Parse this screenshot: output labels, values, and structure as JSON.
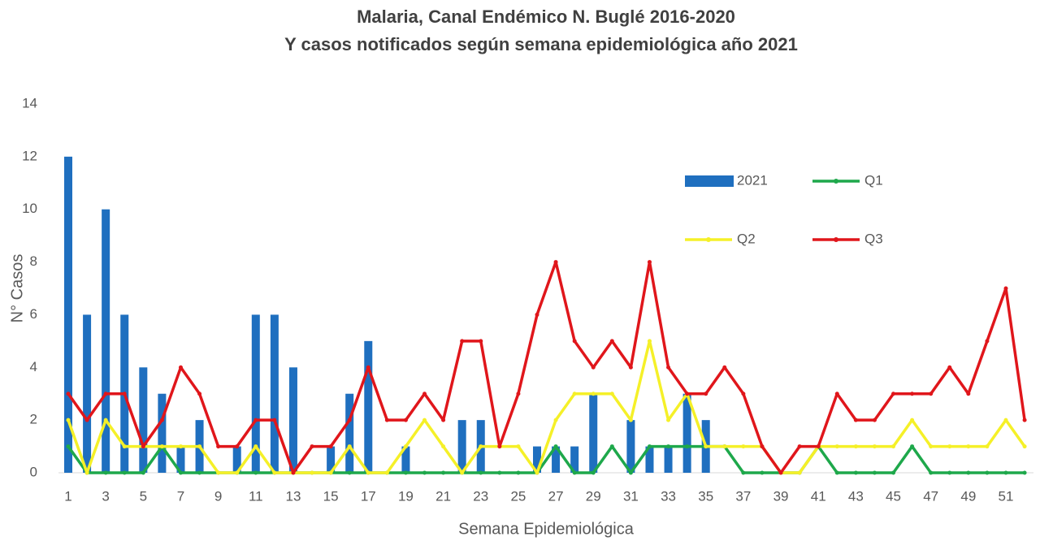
{
  "chart_data": {
    "type": "bar-line",
    "title": "Malaria, Canal Endémico  N. Buglé 2016-2020",
    "subtitle": "Y casos notificados según semana epidemiológica  año 2021",
    "x_label": "Semana Epidemiológica",
    "y_label": "N° Casos",
    "categories": [
      1,
      null,
      3,
      null,
      5,
      null,
      7,
      null,
      9,
      null,
      11,
      null,
      13,
      null,
      15,
      null,
      17,
      null,
      19,
      null,
      21,
      null,
      23,
      null,
      25,
      null,
      27,
      null,
      29,
      null,
      31,
      null,
      33,
      null,
      35,
      null,
      37,
      null,
      39,
      null,
      41,
      null,
      43,
      null,
      45,
      null,
      47,
      null,
      49,
      null,
      51,
      null
    ],
    "series": [
      {
        "name": "2021",
        "type": "bar",
        "color": "#1f6fbf",
        "values": [
          12,
          6,
          10,
          6,
          4,
          3,
          1,
          2,
          0,
          1,
          6,
          6,
          4,
          0,
          1,
          3,
          5,
          0,
          1,
          0,
          0,
          2,
          2,
          0,
          0,
          1,
          1,
          1,
          3,
          0,
          2,
          1,
          1,
          3,
          2,
          null,
          null,
          null,
          null,
          null,
          null,
          null,
          null,
          null,
          null,
          null,
          null,
          null,
          null,
          null,
          null,
          null
        ]
      },
      {
        "name": "Q1",
        "type": "line",
        "color": "#1ea84b",
        "values": [
          1,
          0,
          0,
          0,
          0,
          1,
          0,
          0,
          0,
          0,
          0,
          0,
          0,
          0,
          0,
          0,
          0,
          0,
          0,
          0,
          0,
          0,
          0,
          0,
          0,
          0,
          1,
          0,
          0,
          1,
          0,
          1,
          1,
          1,
          1,
          1,
          0,
          0,
          0,
          0,
          1,
          0,
          0,
          0,
          0,
          1,
          0,
          0,
          0,
          0,
          0,
          0
        ]
      },
      {
        "name": "Q2",
        "type": "line",
        "color": "#f5f028",
        "values": [
          2,
          0,
          2,
          1,
          1,
          1,
          1,
          1,
          0,
          0,
          1,
          0,
          0,
          0,
          0,
          1,
          0,
          0,
          1,
          2,
          1,
          0,
          1,
          1,
          1,
          0,
          2,
          3,
          3,
          3,
          2,
          5,
          2,
          3,
          1,
          1,
          1,
          1,
          0,
          0,
          1,
          1,
          1,
          1,
          1,
          2,
          1,
          1,
          1,
          1,
          2,
          1
        ]
      },
      {
        "name": "Q3",
        "type": "line",
        "color": "#e0161b",
        "values": [
          3,
          2,
          3,
          3,
          1,
          2,
          4,
          3,
          1,
          1,
          2,
          2,
          0,
          1,
          1,
          2,
          4,
          2,
          2,
          3,
          2,
          5,
          5,
          1,
          3,
          6,
          8,
          5,
          4,
          5,
          4,
          8,
          4,
          3,
          3,
          4,
          3,
          1,
          0,
          1,
          1,
          3,
          2,
          2,
          3,
          3,
          3,
          4,
          3,
          5,
          7,
          2
        ]
      }
    ],
    "ylim": [
      0,
      14
    ],
    "yticks": [
      0,
      2,
      4,
      6,
      8,
      10,
      12,
      14
    ],
    "grid": false,
    "legend": "upper right"
  }
}
